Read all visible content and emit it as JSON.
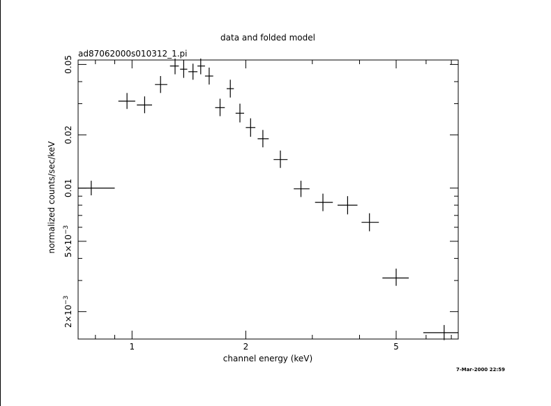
{
  "chart_data": {
    "type": "scatter",
    "title": "data and folded model",
    "subtitle": "ad87062000s010312_1.pi",
    "xlabel": "channel energy (keV)",
    "ylabel": "normalized counts/sec/keV",
    "xscale": "log",
    "yscale": "log",
    "xlim": [
      0.72,
      7.3
    ],
    "ylim": [
      0.0014,
      0.053
    ],
    "x_ticks": [
      {
        "value": 1,
        "label": "1"
      },
      {
        "value": 2,
        "label": "2"
      },
      {
        "value": 5,
        "label": "5"
      }
    ],
    "y_ticks": [
      {
        "value": 0.05,
        "label": "0.05"
      },
      {
        "value": 0.02,
        "label": "0.02"
      },
      {
        "value": 0.01,
        "label": "0.01"
      },
      {
        "value": 0.005,
        "label": "5×10",
        "exp": "−3"
      },
      {
        "value": 0.002,
        "label": "2×10",
        "exp": "−3"
      }
    ],
    "grid": false,
    "series": [
      {
        "points": [
          {
            "x": 0.78,
            "xlo": 0.72,
            "xhi": 0.9,
            "y": 0.01,
            "ylo": 0.0091,
            "yhi": 0.011
          },
          {
            "x": 0.97,
            "xlo": 0.92,
            "xhi": 1.02,
            "y": 0.031,
            "ylo": 0.028,
            "yhi": 0.0345
          },
          {
            "x": 1.08,
            "xlo": 1.03,
            "xhi": 1.13,
            "y": 0.0295,
            "ylo": 0.0265,
            "yhi": 0.033
          },
          {
            "x": 1.19,
            "xlo": 1.15,
            "xhi": 1.24,
            "y": 0.0385,
            "ylo": 0.0345,
            "yhi": 0.043
          },
          {
            "x": 1.3,
            "xlo": 1.26,
            "xhi": 1.33,
            "y": 0.049,
            "ylo": 0.044,
            "yhi": 0.054
          },
          {
            "x": 1.37,
            "xlo": 1.34,
            "xhi": 1.4,
            "y": 0.047,
            "ylo": 0.042,
            "yhi": 0.053
          },
          {
            "x": 1.45,
            "xlo": 1.41,
            "xhi": 1.49,
            "y": 0.0455,
            "ylo": 0.041,
            "yhi": 0.0505
          },
          {
            "x": 1.52,
            "xlo": 1.49,
            "xhi": 1.56,
            "y": 0.049,
            "ylo": 0.044,
            "yhi": 0.054
          },
          {
            "x": 1.6,
            "xlo": 1.56,
            "xhi": 1.64,
            "y": 0.043,
            "ylo": 0.0385,
            "yhi": 0.048
          },
          {
            "x": 1.71,
            "xlo": 1.66,
            "xhi": 1.76,
            "y": 0.0285,
            "ylo": 0.0255,
            "yhi": 0.032
          },
          {
            "x": 1.82,
            "xlo": 1.78,
            "xhi": 1.86,
            "y": 0.0365,
            "ylo": 0.0325,
            "yhi": 0.041
          },
          {
            "x": 1.93,
            "xlo": 1.88,
            "xhi": 1.98,
            "y": 0.0265,
            "ylo": 0.0235,
            "yhi": 0.03
          },
          {
            "x": 2.06,
            "xlo": 2.0,
            "xhi": 2.12,
            "y": 0.022,
            "ylo": 0.0195,
            "yhi": 0.0248
          },
          {
            "x": 2.22,
            "xlo": 2.15,
            "xhi": 2.3,
            "y": 0.019,
            "ylo": 0.017,
            "yhi": 0.0213
          },
          {
            "x": 2.47,
            "xlo": 2.37,
            "xhi": 2.58,
            "y": 0.0145,
            "ylo": 0.013,
            "yhi": 0.0163
          },
          {
            "x": 2.8,
            "xlo": 2.68,
            "xhi": 2.95,
            "y": 0.0099,
            "ylo": 0.0089,
            "yhi": 0.011
          },
          {
            "x": 3.2,
            "xlo": 3.05,
            "xhi": 3.4,
            "y": 0.0083,
            "ylo": 0.0074,
            "yhi": 0.0093
          },
          {
            "x": 3.72,
            "xlo": 3.5,
            "xhi": 3.95,
            "y": 0.008,
            "ylo": 0.0071,
            "yhi": 0.009
          },
          {
            "x": 4.25,
            "xlo": 4.05,
            "xhi": 4.5,
            "y": 0.0064,
            "ylo": 0.0057,
            "yhi": 0.0072
          },
          {
            "x": 5.0,
            "xlo": 4.6,
            "xhi": 5.4,
            "y": 0.0031,
            "ylo": 0.0028,
            "yhi": 0.0035
          },
          {
            "x": 6.7,
            "xlo": 5.9,
            "xhi": 7.3,
            "y": 0.00152,
            "ylo": 0.00138,
            "yhi": 0.00168
          }
        ]
      }
    ]
  },
  "timestamp": "7-Mar-2000 22:59"
}
